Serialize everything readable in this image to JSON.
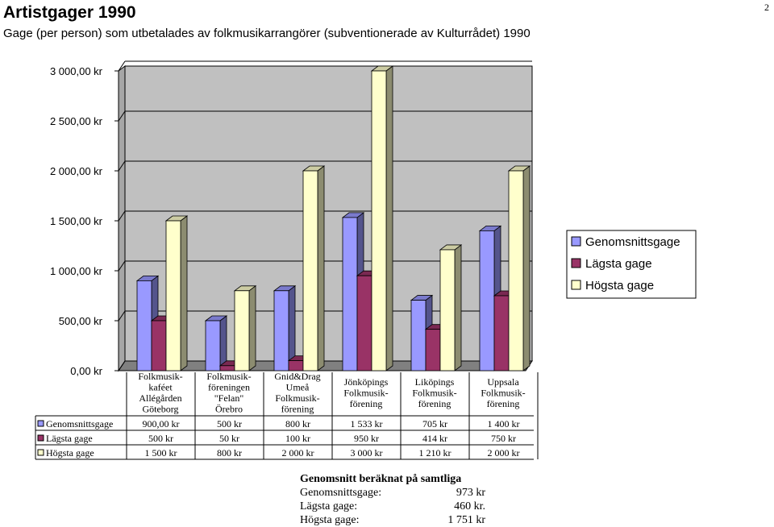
{
  "page_number": "2",
  "chart_data": {
    "type": "bar",
    "title": "Artistgager 1990",
    "subtitle": "Gage (per person) som utbetalades av folkmusikarrangörer (subventionerade av Kulturrådet) 1990",
    "categories": [
      [
        "Folkmusik-",
        "kaféet",
        "Allégården",
        "Göteborg"
      ],
      [
        "Folkmusik-",
        "föreningen",
        "\"Felan\"",
        "Örebro"
      ],
      [
        "Gnid&Drag",
        "Umeå",
        "Folkmusik-",
        "förening"
      ],
      [
        "Jönköpings",
        "Folkmusik-",
        "förening"
      ],
      [
        "Liköpings",
        "Folkmusik-",
        "förening"
      ],
      [
        "Uppsala",
        "Folkmusik-",
        "förening"
      ]
    ],
    "series": [
      {
        "name": "Genomsnittsgage",
        "color": "#9999ff",
        "values": [
          900,
          500,
          800,
          1533,
          705,
          1400
        ],
        "labels": [
          "900,00 kr",
          "500 kr",
          "800 kr",
          "1 533 kr",
          "705 kr",
          "1 400 kr"
        ]
      },
      {
        "name": "Lägsta gage",
        "color": "#993366",
        "values": [
          500,
          50,
          100,
          950,
          414,
          750
        ],
        "labels": [
          "500 kr",
          "50 kr",
          "100 kr",
          "950 kr",
          "414 kr",
          "750 kr"
        ]
      },
      {
        "name": "Högsta gage",
        "color": "#ffffcc",
        "values": [
          1500,
          800,
          2000,
          3000,
          1210,
          2000
        ],
        "labels": [
          "1 500 kr",
          "800 kr",
          "2 000 kr",
          "3 000 kr",
          "1 210 kr",
          "2 000 kr"
        ]
      }
    ],
    "y_ticks": [
      "0,00 kr",
      "500,00 kr",
      "1 000,00 kr",
      "1 500,00 kr",
      "2 000,00 kr",
      "2 500,00 kr",
      "3 000,00 kr"
    ],
    "ylim": [
      0,
      3000
    ],
    "grid": true,
    "legend_position": "right",
    "data_table": true,
    "colors": {
      "wall": "#c0c0c0",
      "floor": "#808080"
    }
  },
  "summary": {
    "title": "Genomsnitt beräknat på samtliga",
    "rows": [
      {
        "label": "Genomsnittsgage:",
        "value": "973 kr"
      },
      {
        "label": "Lägsta gage:",
        "value": "460 kr."
      },
      {
        "label": "Högsta gage:",
        "value": "1 751 kr"
      }
    ]
  }
}
